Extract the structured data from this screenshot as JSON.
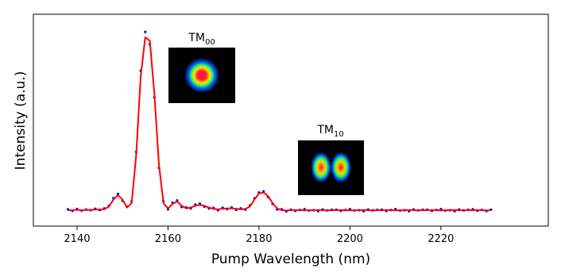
{
  "chart_data": {
    "type": "line",
    "x_label": "Pump Wavelength (nm)",
    "y_label": "Intensity (a.u.)",
    "annotations": [
      {
        "text": "TM",
        "subscript": "00"
      },
      {
        "text": "TM",
        "subscript": "10"
      }
    ],
    "xlim": [
      2130.4,
      2243.6
    ],
    "ylim": [
      0,
      1.2
    ],
    "xticks": [
      2140,
      2160,
      2180,
      2200,
      2220
    ],
    "x": [
      2138,
      2139,
      2140,
      2141,
      2142,
      2143,
      2144,
      2145,
      2146,
      2147,
      2148,
      2149,
      2150,
      2151,
      2152,
      2153,
      2154,
      2155,
      2156,
      2157,
      2158,
      2159,
      2160,
      2161,
      2162,
      2163,
      2164,
      2165,
      2166,
      2167,
      2168,
      2169,
      2170,
      2171,
      2172,
      2173,
      2174,
      2175,
      2176,
      2177,
      2178,
      2179,
      2180,
      2181,
      2182,
      2183,
      2184,
      2185,
      2186,
      2187,
      2188,
      2189,
      2190,
      2191,
      2192,
      2193,
      2194,
      2195,
      2196,
      2197,
      2198,
      2199,
      2200,
      2201,
      2202,
      2203,
      2204,
      2205,
      2206,
      2207,
      2208,
      2209,
      2210,
      2211,
      2212,
      2213,
      2214,
      2215,
      2216,
      2217,
      2218,
      2219,
      2220,
      2221,
      2222,
      2223,
      2224,
      2225,
      2226,
      2227,
      2228,
      2229,
      2230,
      2231
    ],
    "series": [
      {
        "mode": "markers",
        "color": "#0000ff",
        "values": [
          0.095,
          0.086,
          0.097,
          0.088,
          0.094,
          0.09,
          0.098,
          0.091,
          0.1,
          0.115,
          0.158,
          0.182,
          0.143,
          0.11,
          0.14,
          0.42,
          0.88,
          1.1,
          1.03,
          0.73,
          0.33,
          0.14,
          0.095,
          0.132,
          0.145,
          0.108,
          0.106,
          0.1,
          0.122,
          0.127,
          0.11,
          0.1,
          0.103,
          0.09,
          0.104,
          0.096,
          0.105,
          0.092,
          0.1,
          0.093,
          0.117,
          0.157,
          0.19,
          0.196,
          0.164,
          0.126,
          0.094,
          0.095,
          0.083,
          0.093,
          0.086,
          0.091,
          0.096,
          0.088,
          0.09,
          0.084,
          0.094,
          0.089,
          0.092,
          0.093,
          0.086,
          0.091,
          0.096,
          0.088,
          0.09,
          0.084,
          0.094,
          0.089,
          0.092,
          0.093,
          0.086,
          0.091,
          0.096,
          0.088,
          0.09,
          0.084,
          0.094,
          0.089,
          0.092,
          0.093,
          0.086,
          0.091,
          0.096,
          0.088,
          0.09,
          0.084,
          0.094,
          0.089,
          0.092,
          0.095,
          0.087,
          0.091,
          0.085,
          0.093
        ]
      },
      {
        "mode": "line",
        "color": "#ff0000",
        "values": [
          0.09,
          0.09,
          0.092,
          0.09,
          0.091,
          0.092,
          0.093,
          0.094,
          0.095,
          0.11,
          0.15,
          0.175,
          0.15,
          0.105,
          0.13,
          0.4,
          0.85,
          1.07,
          1.05,
          0.75,
          0.35,
          0.13,
          0.1,
          0.125,
          0.14,
          0.115,
          0.1,
          0.105,
          0.115,
          0.12,
          0.115,
          0.105,
          0.097,
          0.095,
          0.098,
          0.1,
          0.1,
          0.098,
          0.095,
          0.097,
          0.11,
          0.15,
          0.185,
          0.19,
          0.17,
          0.13,
          0.1,
          0.09,
          0.088,
          0.09,
          0.091,
          0.09,
          0.089,
          0.09,
          0.09,
          0.091,
          0.09,
          0.089,
          0.09,
          0.09,
          0.091,
          0.09,
          0.089,
          0.09,
          0.09,
          0.091,
          0.09,
          0.089,
          0.09,
          0.09,
          0.091,
          0.09,
          0.089,
          0.09,
          0.09,
          0.091,
          0.09,
          0.089,
          0.09,
          0.09,
          0.091,
          0.09,
          0.089,
          0.09,
          0.09,
          0.091,
          0.09,
          0.089,
          0.09,
          0.09,
          0.091,
          0.09,
          0.089,
          0.09
        ]
      }
    ]
  }
}
